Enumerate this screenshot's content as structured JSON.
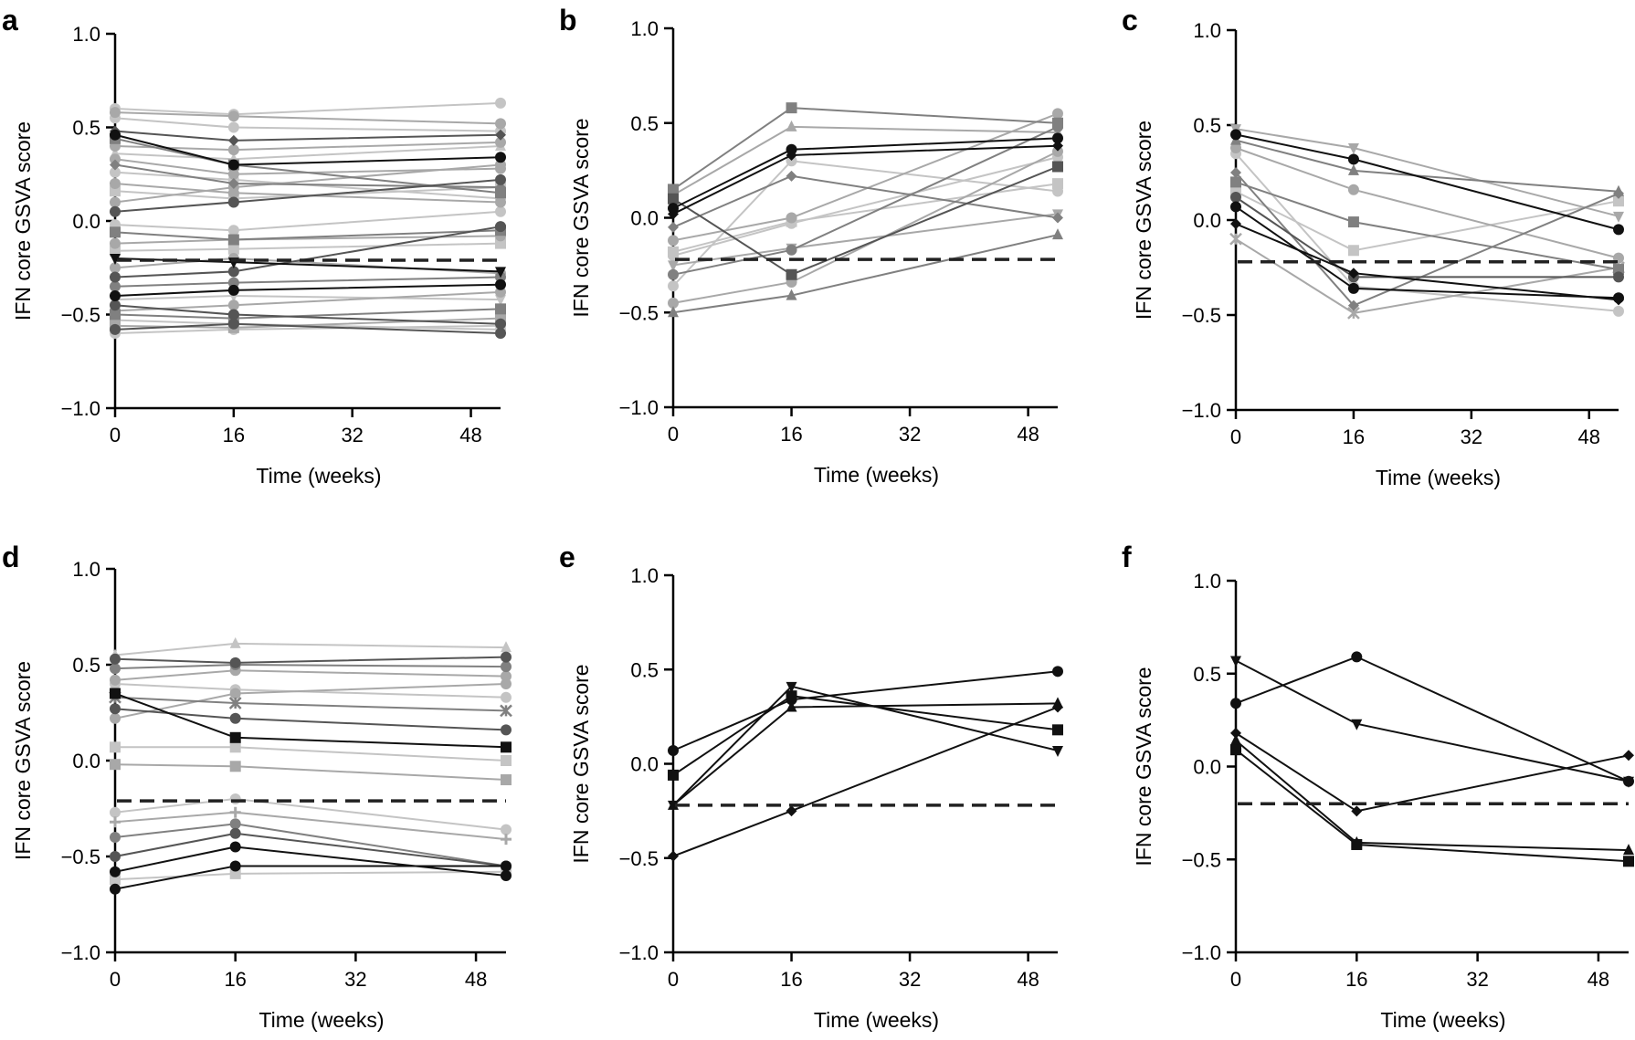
{
  "colors": {
    "black": "#111111",
    "dark": "#555555",
    "mid": "#808080",
    "light": "#a8a8a8",
    "pale": "#c4c4c4",
    "threshold": "#222222"
  },
  "chart_data": [
    {
      "letter": "a",
      "type": "line",
      "xlabel": "Time (weeks)",
      "ylabel": "IFN core GSVA score",
      "xticks": [
        0,
        16,
        32,
        48
      ],
      "yticks": [
        "1.0",
        "0.5",
        "0.0",
        "−0.5",
        "−1.0"
      ],
      "xlim": [
        0,
        52
      ],
      "ylim": [
        -1.0,
        1.0
      ],
      "threshold": -0.21,
      "x": [
        0,
        16,
        52
      ],
      "series": [
        {
          "shade": "pale",
          "marker": "circle",
          "values": [
            0.6,
            0.57,
            0.63
          ]
        },
        {
          "shade": "light",
          "marker": "circle",
          "values": [
            0.58,
            0.56,
            0.52
          ]
        },
        {
          "shade": "pale",
          "marker": "circle",
          "values": [
            0.55,
            0.5,
            0.48
          ]
        },
        {
          "shade": "dark",
          "marker": "diamond",
          "values": [
            0.48,
            0.43,
            0.46
          ]
        },
        {
          "shade": "black",
          "marker": "circle",
          "values": [
            0.46,
            0.3,
            0.34
          ]
        },
        {
          "shade": "mid",
          "marker": "square",
          "values": [
            0.44,
            0.3,
            0.15
          ]
        },
        {
          "shade": "light",
          "marker": "circle",
          "values": [
            0.4,
            0.38,
            0.42
          ]
        },
        {
          "shade": "pale",
          "marker": "triangle",
          "values": [
            0.36,
            0.33,
            0.4
          ]
        },
        {
          "shade": "light",
          "marker": "circle",
          "values": [
            0.33,
            0.25,
            0.28
          ]
        },
        {
          "shade": "mid",
          "marker": "diamond",
          "values": [
            0.3,
            0.2,
            0.18
          ]
        },
        {
          "shade": "pale",
          "marker": "circle",
          "values": [
            0.26,
            0.22,
            0.12
          ]
        },
        {
          "shade": "light",
          "marker": "circle",
          "values": [
            0.2,
            0.15,
            0.1
          ]
        },
        {
          "shade": "pale",
          "marker": "square",
          "values": [
            0.16,
            0.12,
            0.18
          ]
        },
        {
          "shade": "light",
          "marker": "circle",
          "values": [
            0.1,
            0.18,
            0.3
          ]
        },
        {
          "shade": "dark",
          "marker": "circle",
          "values": [
            0.05,
            0.1,
            0.22
          ]
        },
        {
          "shade": "pale",
          "marker": "circle",
          "values": [
            -0.02,
            -0.05,
            0.05
          ]
        },
        {
          "shade": "mid",
          "marker": "square",
          "values": [
            -0.06,
            -0.1,
            -0.05
          ]
        },
        {
          "shade": "light",
          "marker": "circle",
          "values": [
            -0.12,
            -0.1,
            -0.08
          ]
        },
        {
          "shade": "pale",
          "marker": "square",
          "values": [
            -0.16,
            -0.15,
            -0.12
          ]
        },
        {
          "shade": "black",
          "marker": "triangle-down",
          "values": [
            -0.2,
            -0.22,
            -0.27
          ]
        },
        {
          "shade": "light",
          "marker": "circle",
          "values": [
            -0.25,
            -0.2,
            -0.28
          ]
        },
        {
          "shade": "dark",
          "marker": "circle",
          "values": [
            -0.3,
            -0.27,
            -0.03
          ]
        },
        {
          "shade": "mid",
          "marker": "circle",
          "values": [
            -0.35,
            -0.33,
            -0.3
          ]
        },
        {
          "shade": "black",
          "marker": "circle",
          "values": [
            -0.4,
            -0.37,
            -0.34
          ]
        },
        {
          "shade": "pale",
          "marker": "triangle-down",
          "values": [
            -0.42,
            -0.4,
            -0.42
          ]
        },
        {
          "shade": "dark",
          "marker": "circle",
          "values": [
            -0.45,
            -0.5,
            -0.55
          ]
        },
        {
          "shade": "light",
          "marker": "circle",
          "values": [
            -0.48,
            -0.45,
            -0.38
          ]
        },
        {
          "shade": "mid",
          "marker": "square",
          "values": [
            -0.5,
            -0.52,
            -0.47
          ]
        },
        {
          "shade": "pale",
          "marker": "circle",
          "values": [
            -0.53,
            -0.55,
            -0.58
          ]
        },
        {
          "shade": "light",
          "marker": "square",
          "values": [
            -0.56,
            -0.57,
            -0.52
          ]
        },
        {
          "shade": "dark",
          "marker": "circle",
          "values": [
            -0.58,
            -0.55,
            -0.6
          ]
        },
        {
          "shade": "pale",
          "marker": "circle",
          "values": [
            -0.6,
            -0.58,
            -0.56
          ]
        }
      ]
    },
    {
      "letter": "b",
      "type": "line",
      "xlabel": "Time (weeks)",
      "ylabel": "IFN core GSVA score",
      "xticks": [
        0,
        16,
        32,
        48
      ],
      "yticks": [
        "1.0",
        "0.5",
        "0.0",
        "−0.5",
        "−1.0"
      ],
      "xlim": [
        0,
        52
      ],
      "ylim": [
        -1.0,
        1.0
      ],
      "threshold": -0.22,
      "x": [
        0,
        16,
        52
      ],
      "series": [
        {
          "shade": "mid",
          "marker": "square",
          "values": [
            0.15,
            0.58,
            0.5
          ]
        },
        {
          "shade": "light",
          "marker": "triangle",
          "values": [
            0.12,
            0.48,
            0.45
          ]
        },
        {
          "shade": "black",
          "marker": "circle",
          "values": [
            0.05,
            0.36,
            0.42
          ]
        },
        {
          "shade": "black",
          "marker": "diamond",
          "values": [
            0.02,
            0.33,
            0.38
          ]
        },
        {
          "shade": "dark",
          "marker": "square",
          "values": [
            0.1,
            -0.3,
            0.27
          ]
        },
        {
          "shade": "mid",
          "marker": "diamond",
          "values": [
            -0.05,
            0.22,
            0.0
          ]
        },
        {
          "shade": "light",
          "marker": "circle",
          "values": [
            -0.12,
            0.0,
            0.55
          ]
        },
        {
          "shade": "pale",
          "marker": "circle",
          "values": [
            -0.2,
            -0.03,
            0.32
          ]
        },
        {
          "shade": "light",
          "marker": "triangle-down",
          "values": [
            -0.25,
            -0.16,
            0.02
          ]
        },
        {
          "shade": "mid",
          "marker": "circle",
          "values": [
            -0.3,
            -0.17,
            0.48
          ]
        },
        {
          "shade": "pale",
          "marker": "circle",
          "values": [
            -0.36,
            0.3,
            0.14
          ]
        },
        {
          "shade": "light",
          "marker": "circle",
          "values": [
            -0.45,
            -0.34,
            0.35
          ]
        },
        {
          "shade": "mid",
          "marker": "triangle",
          "values": [
            -0.5,
            -0.41,
            -0.09
          ]
        },
        {
          "shade": "pale",
          "marker": "square",
          "values": [
            -0.18,
            -0.02,
            0.18
          ]
        }
      ]
    },
    {
      "letter": "c",
      "type": "line",
      "xlabel": "Time (weeks)",
      "ylabel": "IFN core GSVA score",
      "xticks": [
        0,
        16,
        32,
        48
      ],
      "yticks": [
        "1.0",
        "0.5",
        "0.0",
        "−0.5",
        "−1.0"
      ],
      "xlim": [
        0,
        52
      ],
      "ylim": [
        -1.0,
        1.0
      ],
      "threshold": -0.22,
      "x": [
        0,
        16,
        52
      ],
      "series": [
        {
          "shade": "light",
          "marker": "triangle-down",
          "values": [
            0.48,
            0.38,
            0.02
          ]
        },
        {
          "shade": "black",
          "marker": "circle",
          "values": [
            0.45,
            0.32,
            -0.05
          ]
        },
        {
          "shade": "mid",
          "marker": "triangle",
          "values": [
            0.42,
            0.26,
            0.15
          ]
        },
        {
          "shade": "light",
          "marker": "circle",
          "values": [
            0.38,
            0.16,
            -0.2
          ]
        },
        {
          "shade": "mid",
          "marker": "square",
          "values": [
            0.2,
            -0.01,
            -0.26
          ]
        },
        {
          "shade": "pale",
          "marker": "square",
          "values": [
            0.15,
            -0.16,
            0.1
          ]
        },
        {
          "shade": "dark",
          "marker": "circle",
          "values": [
            0.12,
            -0.3,
            -0.3
          ]
        },
        {
          "shade": "black",
          "marker": "circle",
          "values": [
            0.07,
            -0.36,
            -0.41
          ]
        },
        {
          "shade": "light",
          "marker": "star",
          "values": [
            -0.1,
            -0.49,
            -0.25
          ]
        },
        {
          "shade": "black",
          "marker": "diamond",
          "values": [
            -0.02,
            -0.28,
            -0.42
          ]
        },
        {
          "shade": "pale",
          "marker": "circle",
          "values": [
            0.35,
            -0.35,
            -0.48
          ]
        },
        {
          "shade": "mid",
          "marker": "diamond",
          "values": [
            0.25,
            -0.45,
            0.14
          ]
        }
      ]
    },
    {
      "letter": "d",
      "type": "line",
      "xlabel": "Time (weeks)",
      "ylabel": "IFN core GSVA score",
      "xticks": [
        0,
        16,
        32,
        48
      ],
      "yticks": [
        "1.0",
        "0.5",
        "0.0",
        "−0.5",
        "−1.0"
      ],
      "xlim": [
        0,
        52
      ],
      "ylim": [
        -1.0,
        1.0
      ],
      "threshold": -0.21,
      "x": [
        0,
        16,
        52
      ],
      "series": [
        {
          "shade": "pale",
          "marker": "triangle",
          "values": [
            0.55,
            0.61,
            0.59
          ]
        },
        {
          "shade": "dark",
          "marker": "circle",
          "values": [
            0.53,
            0.51,
            0.54
          ]
        },
        {
          "shade": "mid",
          "marker": "circle",
          "values": [
            0.48,
            0.5,
            0.49
          ]
        },
        {
          "shade": "light",
          "marker": "circle",
          "values": [
            0.42,
            0.47,
            0.44
          ]
        },
        {
          "shade": "pale",
          "marker": "circle",
          "values": [
            0.4,
            0.37,
            0.33
          ]
        },
        {
          "shade": "mid",
          "marker": "star",
          "values": [
            0.33,
            0.3,
            0.26
          ]
        },
        {
          "shade": "black",
          "marker": "square",
          "values": [
            0.35,
            0.12,
            0.07
          ]
        },
        {
          "shade": "dark",
          "marker": "circle",
          "values": [
            0.27,
            0.22,
            0.16
          ]
        },
        {
          "shade": "light",
          "marker": "circle",
          "values": [
            0.22,
            0.35,
            0.4
          ]
        },
        {
          "shade": "pale",
          "marker": "square",
          "values": [
            0.07,
            0.07,
            0.0
          ]
        },
        {
          "shade": "light",
          "marker": "square",
          "values": [
            -0.02,
            -0.03,
            -0.1
          ]
        },
        {
          "shade": "pale",
          "marker": "circle",
          "values": [
            -0.27,
            -0.2,
            -0.36
          ]
        },
        {
          "shade": "light",
          "marker": "cross",
          "values": [
            -0.32,
            -0.27,
            -0.41
          ]
        },
        {
          "shade": "mid",
          "marker": "circle",
          "values": [
            -0.4,
            -0.33,
            -0.55
          ]
        },
        {
          "shade": "dark",
          "marker": "circle",
          "values": [
            -0.5,
            -0.38,
            -0.55
          ]
        },
        {
          "shade": "black",
          "marker": "circle",
          "values": [
            -0.58,
            -0.45,
            -0.6
          ]
        },
        {
          "shade": "black",
          "marker": "circle",
          "values": [
            -0.67,
            -0.55,
            -0.55
          ]
        },
        {
          "shade": "pale",
          "marker": "square",
          "values": [
            -0.62,
            -0.59,
            -0.58
          ]
        }
      ]
    },
    {
      "letter": "e",
      "type": "line",
      "xlabel": "Time (weeks)",
      "ylabel": "IFN core GSVA score",
      "xticks": [
        0,
        16,
        32,
        48
      ],
      "yticks": [
        "1.0",
        "0.5",
        "0.0",
        "−0.5",
        "−1.0"
      ],
      "xlim": [
        0,
        52
      ],
      "ylim": [
        -1.0,
        1.0
      ],
      "threshold": -0.22,
      "x": [
        0,
        16,
        52
      ],
      "series": [
        {
          "shade": "black",
          "marker": "circle",
          "values": [
            0.07,
            0.34,
            0.49
          ]
        },
        {
          "shade": "black",
          "marker": "square",
          "values": [
            -0.06,
            0.36,
            0.18
          ]
        },
        {
          "shade": "black",
          "marker": "triangle",
          "values": [
            -0.22,
            0.3,
            0.32
          ]
        },
        {
          "shade": "black",
          "marker": "triangle-down",
          "values": [
            -0.22,
            0.41,
            0.07
          ]
        },
        {
          "shade": "black",
          "marker": "diamond",
          "values": [
            -0.49,
            -0.25,
            0.3
          ]
        }
      ]
    },
    {
      "letter": "f",
      "type": "line",
      "xlabel": "Time (weeks)",
      "ylabel": "IFN core GSVA score",
      "xticks": [
        0,
        16,
        32,
        48
      ],
      "yticks": [
        "1.0",
        "0.5",
        "0.0",
        "−0.5",
        "−1.0"
      ],
      "xlim": [
        0,
        52
      ],
      "ylim": [
        -1.0,
        1.0
      ],
      "threshold": -0.2,
      "x": [
        0,
        16,
        52
      ],
      "series": [
        {
          "shade": "black",
          "marker": "triangle-down",
          "values": [
            0.57,
            0.23,
            -0.08
          ]
        },
        {
          "shade": "black",
          "marker": "circle",
          "values": [
            0.34,
            0.59,
            -0.08
          ]
        },
        {
          "shade": "black",
          "marker": "diamond",
          "values": [
            0.18,
            -0.24,
            0.06
          ]
        },
        {
          "shade": "black",
          "marker": "triangle",
          "values": [
            0.14,
            -0.41,
            -0.45
          ]
        },
        {
          "shade": "black",
          "marker": "square",
          "values": [
            0.09,
            -0.42,
            -0.51
          ]
        }
      ]
    }
  ]
}
